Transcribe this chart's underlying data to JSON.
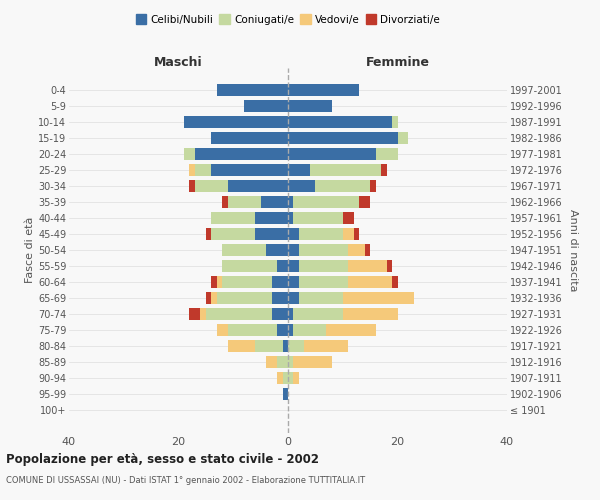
{
  "age_groups": [
    "100+",
    "95-99",
    "90-94",
    "85-89",
    "80-84",
    "75-79",
    "70-74",
    "65-69",
    "60-64",
    "55-59",
    "50-54",
    "45-49",
    "40-44",
    "35-39",
    "30-34",
    "25-29",
    "20-24",
    "15-19",
    "10-14",
    "5-9",
    "0-4"
  ],
  "birth_years": [
    "≤ 1901",
    "1902-1906",
    "1907-1911",
    "1912-1916",
    "1917-1921",
    "1922-1926",
    "1927-1931",
    "1932-1936",
    "1937-1941",
    "1942-1946",
    "1947-1951",
    "1952-1956",
    "1957-1961",
    "1962-1966",
    "1967-1971",
    "1972-1976",
    "1977-1981",
    "1982-1986",
    "1987-1991",
    "1992-1996",
    "1997-2001"
  ],
  "maschi": {
    "celibi": [
      0,
      1,
      0,
      0,
      1,
      2,
      3,
      3,
      3,
      2,
      4,
      6,
      6,
      5,
      11,
      14,
      17,
      14,
      19,
      8,
      13
    ],
    "coniugati": [
      0,
      0,
      1,
      2,
      5,
      9,
      12,
      10,
      9,
      10,
      8,
      8,
      8,
      6,
      6,
      3,
      2,
      0,
      0,
      0,
      0
    ],
    "vedovi": [
      0,
      0,
      1,
      2,
      5,
      2,
      1,
      1,
      1,
      0,
      0,
      0,
      0,
      0,
      0,
      1,
      0,
      0,
      0,
      0,
      0
    ],
    "divorziati": [
      0,
      0,
      0,
      0,
      0,
      0,
      2,
      1,
      1,
      0,
      0,
      1,
      0,
      1,
      1,
      0,
      0,
      0,
      0,
      0,
      0
    ]
  },
  "femmine": {
    "nubili": [
      0,
      0,
      0,
      0,
      0,
      1,
      1,
      2,
      2,
      2,
      2,
      2,
      1,
      1,
      5,
      4,
      16,
      20,
      19,
      8,
      13
    ],
    "coniugate": [
      0,
      0,
      1,
      1,
      3,
      6,
      9,
      8,
      9,
      9,
      9,
      8,
      9,
      12,
      10,
      13,
      4,
      2,
      1,
      0,
      0
    ],
    "vedove": [
      0,
      0,
      1,
      7,
      8,
      9,
      10,
      13,
      8,
      7,
      3,
      2,
      0,
      0,
      0,
      0,
      0,
      0,
      0,
      0,
      0
    ],
    "divorziate": [
      0,
      0,
      0,
      0,
      0,
      0,
      0,
      0,
      1,
      1,
      1,
      1,
      2,
      2,
      1,
      1,
      0,
      0,
      0,
      0,
      0
    ]
  },
  "colors": {
    "celibi": "#3a6ea5",
    "coniugati": "#c5d9a0",
    "vedovi": "#f5c97a",
    "divorziati": "#c0392b"
  },
  "xlim": [
    -40,
    40
  ],
  "xticks": [
    -40,
    -20,
    0,
    20,
    40
  ],
  "xticklabels": [
    "40",
    "20",
    "0",
    "20",
    "40"
  ],
  "title": "Popolazione per età, sesso e stato civile - 2002",
  "subtitle": "COMUNE DI USSASSAI (NU) - Dati ISTAT 1° gennaio 2002 - Elaborazione TUTTITALIA.IT",
  "ylabel_left": "Fasce di età",
  "ylabel_right": "Anni di nascita",
  "label_maschi": "Maschi",
  "label_femmine": "Femmine",
  "legend_labels": [
    "Celibi/Nubili",
    "Coniugati/e",
    "Vedovi/e",
    "Divorziati/e"
  ],
  "bg_color": "#f8f8f8",
  "bar_height": 0.75
}
